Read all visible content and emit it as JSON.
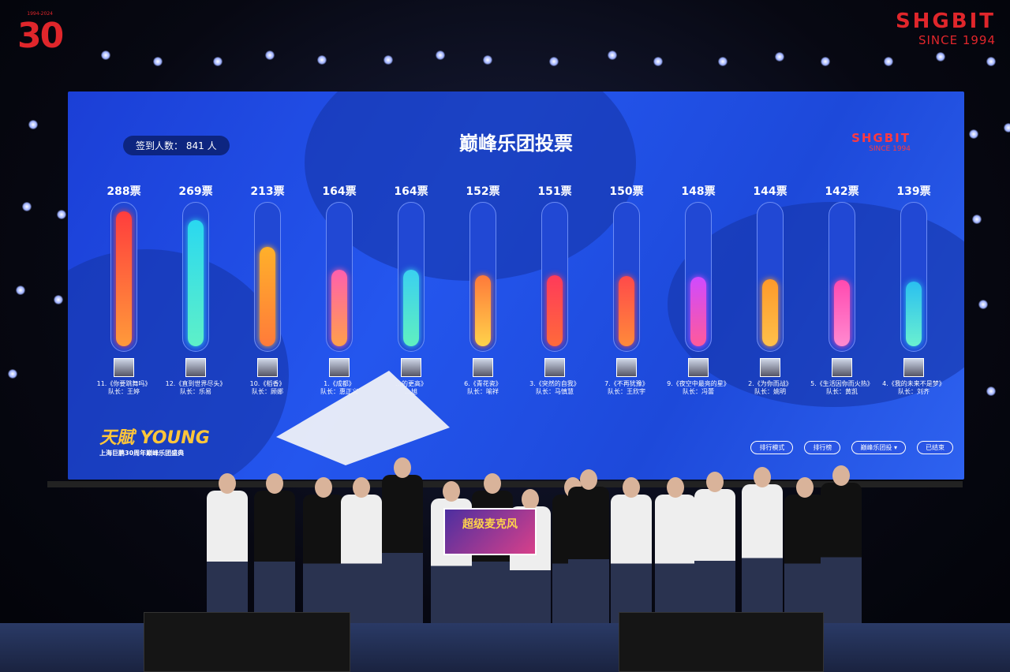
{
  "logo": {
    "number": "30",
    "years": "1994-2024"
  },
  "brand": {
    "name": "SHGBIT",
    "since": "SINCE 1994"
  },
  "screen": {
    "title": "巅峰乐团投票",
    "checkin_label": "签到人数：",
    "checkin_count": "841",
    "checkin_unit": "人",
    "brand_name": "SHGBIT",
    "brand_since": "SINCE 1994",
    "event_logo": "天賦 YOUNG",
    "event_sub": "上海巨鹏30周年巅峰乐团盛典",
    "buttons": [
      "排行模式",
      "排行榜",
      "巅峰乐团投 ▾",
      "已结束"
    ]
  },
  "chart_data": {
    "type": "bar",
    "title": "巅峰乐团投票",
    "value_suffix": "票",
    "series_colors": [
      [
        "#ff3d3d",
        "#ff9a3a"
      ],
      [
        "#2ad8f0",
        "#5ef0c8"
      ],
      [
        "#ffb02a",
        "#ff7b3a"
      ],
      [
        "#ff5fae",
        "#ffa04a"
      ],
      [
        "#3ad0f0",
        "#60f0c0"
      ],
      [
        "#ff7a3a",
        "#ffd24a"
      ],
      [
        "#ff3a5a",
        "#ff6a3a"
      ],
      [
        "#ff4a4a",
        "#ff8a3a"
      ],
      [
        "#d04aff",
        "#ff5a9a"
      ],
      [
        "#ff9a2a",
        "#ffc04a"
      ],
      [
        "#ff4ab0",
        "#ff8ad0"
      ],
      [
        "#2ac0f0",
        "#6af0d0"
      ]
    ],
    "categories": [
      {
        "song": "11.《你要跳舞吗》",
        "captain": "队长：王婷",
        "votes": 288
      },
      {
        "song": "12.《直到世界尽头》",
        "captain": "队长：乐易",
        "votes": 269
      },
      {
        "song": "10.《稻香》",
        "captain": "队长：顾娜",
        "votes": 213
      },
      {
        "song": "1.《成都》",
        "captain": "队长：惠正义",
        "votes": 164
      },
      {
        "song": "…的更高》",
        "captain": "…旭",
        "votes": 164
      },
      {
        "song": "6.《青花瓷》",
        "captain": "队长：喻祥",
        "votes": 152
      },
      {
        "song": "3.《突然的自我》",
        "captain": "队长：马慎慧",
        "votes": 151
      },
      {
        "song": "7.《不再犹豫》",
        "captain": "队长：王欣宇",
        "votes": 150
      },
      {
        "song": "9.《夜空中最亮的星》",
        "captain": "队长：冯蕾",
        "votes": 148
      },
      {
        "song": "2.《为你而战》",
        "captain": "队长：姚明",
        "votes": 144
      },
      {
        "song": "5.《生活因你而火热》",
        "captain": "队长：黄凯",
        "votes": 142
      },
      {
        "song": "4.《我的未来不是梦》",
        "captain": "队长：刘齐",
        "votes": 139
      }
    ],
    "ylim": [
      0,
      300
    ]
  },
  "sign": {
    "text": "超级麦克风"
  }
}
